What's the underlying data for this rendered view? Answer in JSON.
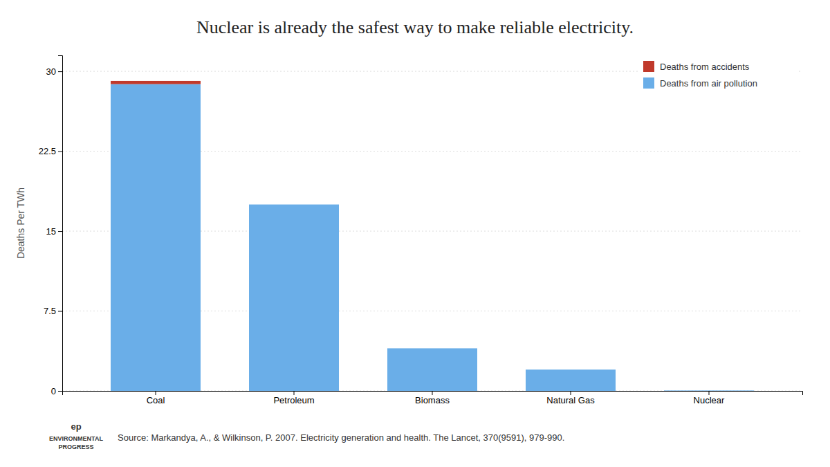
{
  "chart_data": {
    "type": "bar",
    "title": "Nuclear is already the safest way to make reliable electricity.",
    "categories": [
      "Coal",
      "Petroleum",
      "Biomass",
      "Natural Gas",
      "Nuclear"
    ],
    "series": [
      {
        "name": "Deaths from air pollution",
        "color": "#6aaee8",
        "values": [
          28.8,
          17.5,
          4.0,
          2.0,
          0.04
        ]
      },
      {
        "name": "Deaths from accidents",
        "color": "#c0392b",
        "values": [
          0.3,
          0.0,
          0.0,
          0.0,
          0.0
        ]
      }
    ],
    "stacked": true,
    "ylabel": "Deaths Per TWh",
    "ylim": [
      0,
      31.5
    ],
    "yticks": [
      0,
      7.5,
      15,
      22.5,
      30
    ],
    "grid": true,
    "legend": "upper right",
    "annotations": [
      "Source: Markandya, A., & Wilkinson, P. 2007. Electricity generation and health. The Lancet, 370(9591), 979-990.",
      "ep",
      "ENVIRONMENTAL",
      "PROGRESS"
    ]
  }
}
